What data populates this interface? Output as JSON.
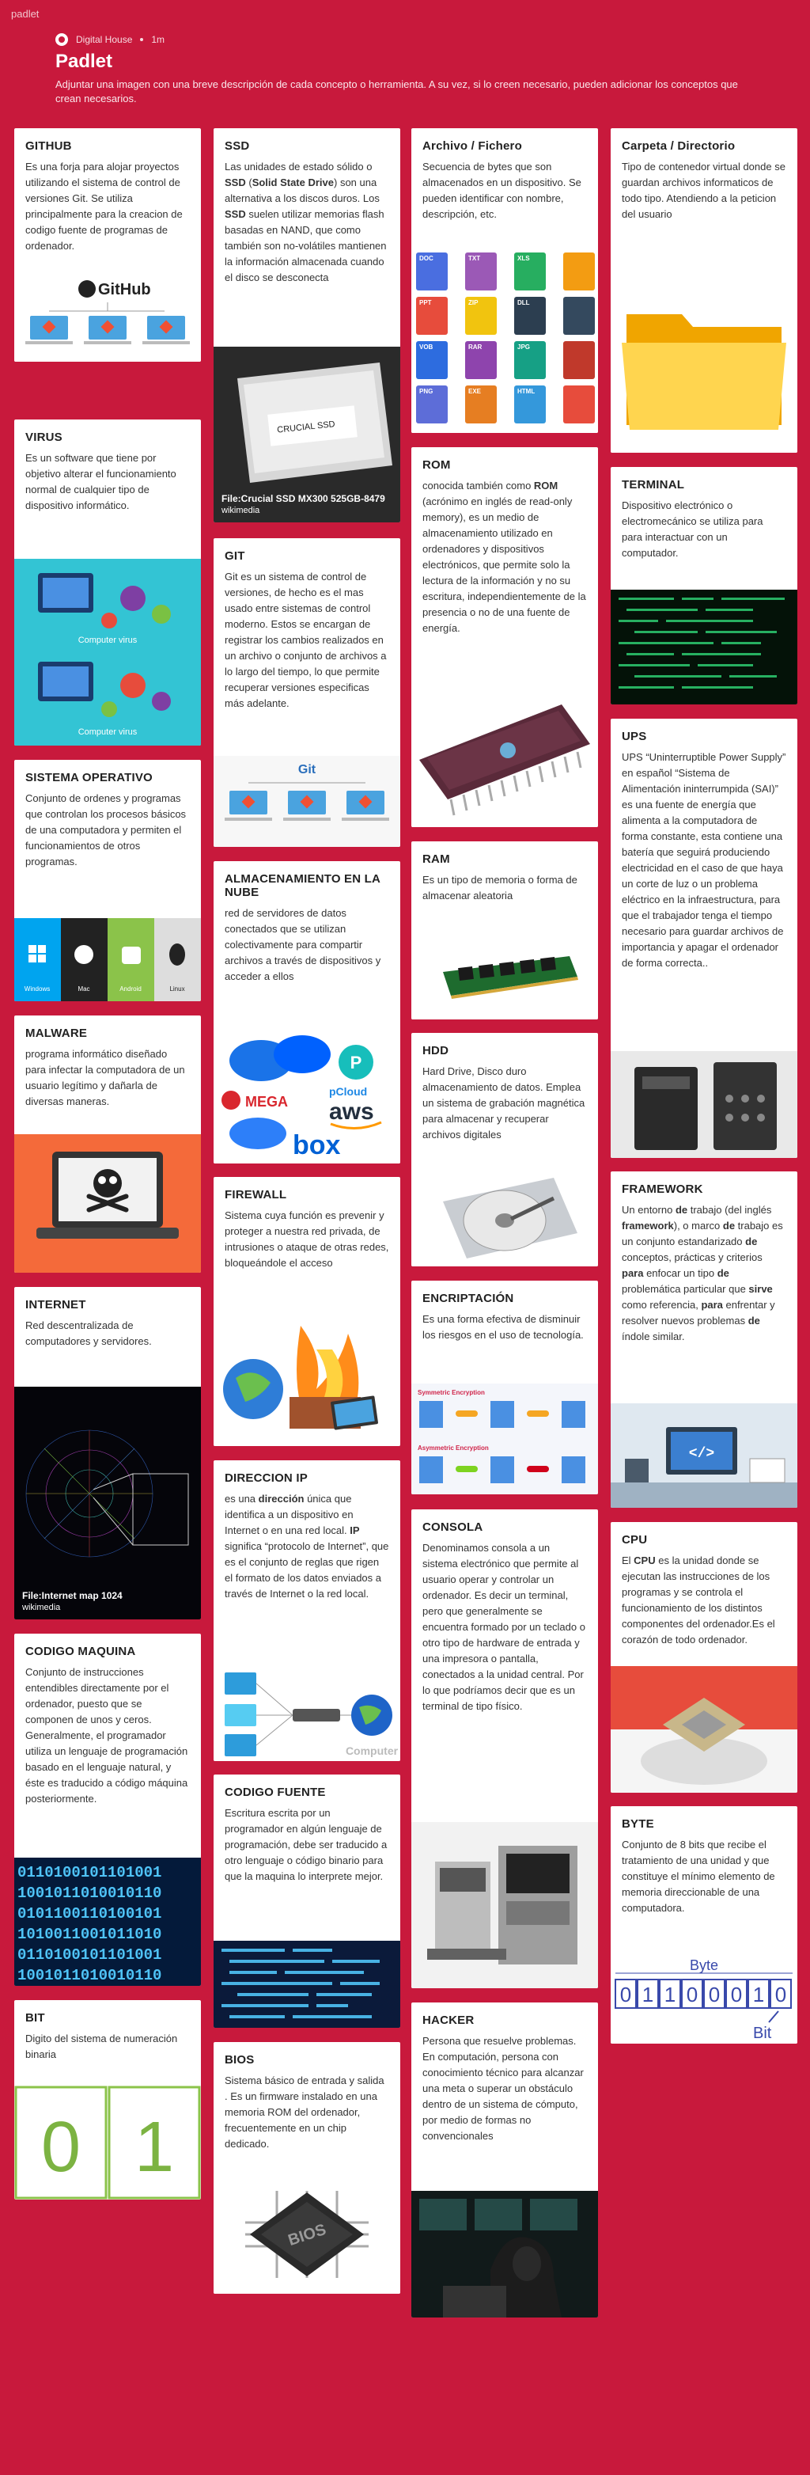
{
  "app": "padlet",
  "header": {
    "author": "Digital House",
    "age": "1m",
    "title": "Padlet",
    "description": "Adjuntar una imagen con una breve descripción de cada concepto o herramienta. A su vez, si lo creen necesario, pueden adicionar los conceptos que crean necesarios."
  },
  "cards": {
    "github": {
      "title": "GITHUB",
      "body": "Es una forja para alojar proyectos utilizando el sistema de control de versiones Git. Se utiliza principalmente para la creacion de codigo fuente de programas de ordenador.",
      "img_text": "GitHub"
    },
    "virus": {
      "title": "VIRUS",
      "body": "Es un software que tiene por objetivo alterar el funcionamiento normal de cualquier tipo de dispositivo informático.",
      "img_text1": "Computer virus",
      "img_text2": "Computer virus"
    },
    "so": {
      "title": "SISTEMA OPERATIVO",
      "body": "Conjunto de ordenes y programas que controlan los procesos básicos de una computadora y permiten el funcionamientos de otros programas.",
      "os": [
        "Windows",
        "Mac",
        "Android",
        "Linux"
      ]
    },
    "malware": {
      "title": "MALWARE",
      "body": "programa informático diseñado para infectar la computadora de un usuario legítimo y dañarla de diversas maneras."
    },
    "internet": {
      "title": "INTERNET",
      "body": "Red descentralizada de computadores y servidores.",
      "cap_title": "File:Internet map 1024",
      "cap_src": "wikimedia"
    },
    "codigomaquina": {
      "title": "CODIGO MAQUINA",
      "body": "Conjunto de instrucciones entendibles directamente por el ordenador, puesto que se componen de unos y ceros. Generalmente, el programador utiliza un lenguaje de programación basado en el lenguaje natural, y éste es traducido a código máquina posteriormente.",
      "binary": [
        "0110100101101001",
        "1001011010010110",
        "0101100110100101",
        "1010011001011010",
        "0110100101101001",
        "1001011010010110"
      ]
    },
    "bit": {
      "title": "BIT",
      "body": "Digito del sistema de numeración binaria",
      "digits": [
        "0",
        "1"
      ]
    },
    "ssd": {
      "title": "SSD",
      "body_pre": "Las unidades de estado sólido o ",
      "body_b1": "SSD",
      "body_mid1": " (",
      "body_b2": "Solid State Drive",
      "body_mid2": ") son una alternativa a los discos duros. Los ",
      "body_b3": "SSD",
      "body_post": " suelen utilizar memorias flash basadas en NAND, que como también son no-volátiles mantienen la información almacenada cuando el disco se desconecta",
      "img_text": "CRUCIAL SSD",
      "cap_title": "File:Crucial SSD MX300 525GB-8479",
      "cap_src": "wikimedia"
    },
    "git": {
      "title": "GIT",
      "body": "Git es un sistema de control de versiones, de hecho es el mas usado entre sistemas de control moderno. Estos se encargan de registrar los cambios realizados en un archivo o conjunto de archivos a lo largo del tiempo, lo que permite recuperar versiones especificas más adelante.",
      "img_text": "Git"
    },
    "nube": {
      "title": "ALMACENAMIENTO EN LA NUBE",
      "body": "red de servidores de datos conectados que se utilizan colectivamente para compartir archivos a través de dispositivos y acceder a ellos",
      "logos": [
        "MEGA",
        "pCloud",
        "aws",
        "box"
      ]
    },
    "firewall": {
      "title": "FIREWALL",
      "body": "Sistema cuya función es prevenir y proteger a nuestra red privada, de intrusiones o ataque de otras redes, bloqueándole el acceso"
    },
    "ip": {
      "title": "DIRECCION IP",
      "body_pre": "es una ",
      "body_b1": "dirección",
      "body_mid": " única que identifica a un dispositivo en Internet o en una red local. ",
      "body_b2": "IP",
      "body_post": " significa “protocolo de Internet”, que es el conjunto de reglas que rigen el formato de los datos enviados a través de Internet o la red local.",
      "img_text": "Computer"
    },
    "codigofuente": {
      "title": "CODIGO FUENTE",
      "body": "Escritura escrita por un programador en algún lenguaje de programación, debe ser traducido a otro lenguaje o código binario para que la maquina lo interprete mejor."
    },
    "bios": {
      "title": "BIOS",
      "body": "Sistema básico de entrada y salida . Es un firmware instalado en una memoria ROM del ordenador, frecuentemente en un chip dedicado.",
      "img_text": "BIOS"
    },
    "archivo": {
      "title": "Archivo / Fichero",
      "body": "Secuencia de bytes que son almacenados en un dispositivo. Se pueden identificar con nombre, descripción, etc.",
      "icons": [
        "DOC",
        "TXT",
        "XLS",
        "PPT",
        "ZIP",
        "DLL",
        "VOB",
        "RAR",
        "JPG",
        "PNG",
        "EXE",
        "HTML"
      ]
    },
    "rom": {
      "title": "ROM",
      "body_pre": "conocida también como ",
      "body_b": "ROM",
      "body_post": " (acrónimo en inglés de read-only memory), es un medio de almacenamiento utilizado en ordenadores y dispositivos electrónicos, que permite solo la lectura de la información y no su escritura, independientemente de la presencia o no de una fuente de energía."
    },
    "ram": {
      "title": "RAM",
      "body": "Es un tipo de memoria o forma de almacenar aleatoria"
    },
    "hdd": {
      "title": "HDD",
      "body": "Hard Drive, Disco duro almacenamiento de datos. Emplea un sistema de grabación magnética para almacenar y recuperar archivos digitales"
    },
    "encriptacion": {
      "title": "ENCRIPTACIÓN",
      "body": "Es una forma efectiva de disminuir los riesgos en el uso de tecnología.",
      "labels": [
        "Symmetric Encryption",
        "Asymmetric Encryption"
      ]
    },
    "consola": {
      "title": "CONSOLA",
      "body": "Denominamos consola a un sistema electrónico  que permite al usuario operar y controlar un ordenador. Es decir un terminal, pero que generalmente se encuentra formado por un teclado o otro tipo de hardware de entrada y una impresora o pantalla, conectados a la unidad central. Por lo que podríamos decir que es un terminal de tipo físico."
    },
    "hacker": {
      "title": "HACKER",
      "body": "Persona que resuelve problemas. En computación, persona con conocimiento técnico para alcanzar una meta o superar un obstáculo dentro de un sistema de cómputo, por medio de formas no convencionales"
    },
    "carpeta": {
      "title": "Carpeta / Directorio",
      "body": "Tipo de contenedor virtual donde se guardan archivos informaticos de todo tipo. Atendiendo a la peticion del usuario"
    },
    "terminal": {
      "title": "TERMINAL",
      "body": "Dispositivo electrónico o electromecánico se utiliza para para interactuar con un computador."
    },
    "ups": {
      "title": "UPS",
      "body": "UPS  “Uninterruptible Power Supply”  en español  “Sistema de Alimentación ininterrumpida (SAI)” es una fuente de energía que alimenta a la computadora de forma constante, esta contiene una batería que seguirá produciendo electricidad en el caso de que haya un corte de luz o un problema eléctrico en la infraestructura,  para que el trabajador tenga el tiempo necesario para guardar archivos de importancia y apagar el ordenador de forma correcta.."
    },
    "framework": {
      "title": "FRAMEWORK",
      "t1": "Un entorno ",
      "b1": "de",
      "t2": " trabajo (del inglés ",
      "b2": "framework",
      "t3": "), o marco ",
      "b3": "de",
      "t4": " trabajo es un conjunto estandarizado ",
      "b4": "de",
      "t5": " conceptos, prácticas y criterios ",
      "b5": "para",
      "t6": " enfocar un tipo ",
      "b6": "de",
      "t7": " problemática particular que ",
      "b7": "sirve",
      "t8": " como referencia, ",
      "b8": "para",
      "t9": " enfrentar y resolver nuevos problemas ",
      "b9": "de",
      "t10": " índole similar.",
      "img_text": "</>"
    },
    "cpu": {
      "title": "CPU",
      "body_pre": "El ",
      "body_b": "CPU",
      "body_post": " es la unidad donde se ejecutan las instrucciones de los programas y se controla el funcionamiento de los distintos componentes del ordenador.Es el corazón de todo ordenador."
    },
    "byte": {
      "title": "BYTE",
      "body": "Conjunto de 8 bits que recibe el tratamiento de una unidad y que constituye el mínimo elemento de memoria direccionable de una computadora.",
      "label_byte": "Byte",
      "label_bit": "Bit",
      "bits": [
        "0",
        "1",
        "1",
        "0",
        "0",
        "0",
        "1",
        "0"
      ]
    }
  }
}
